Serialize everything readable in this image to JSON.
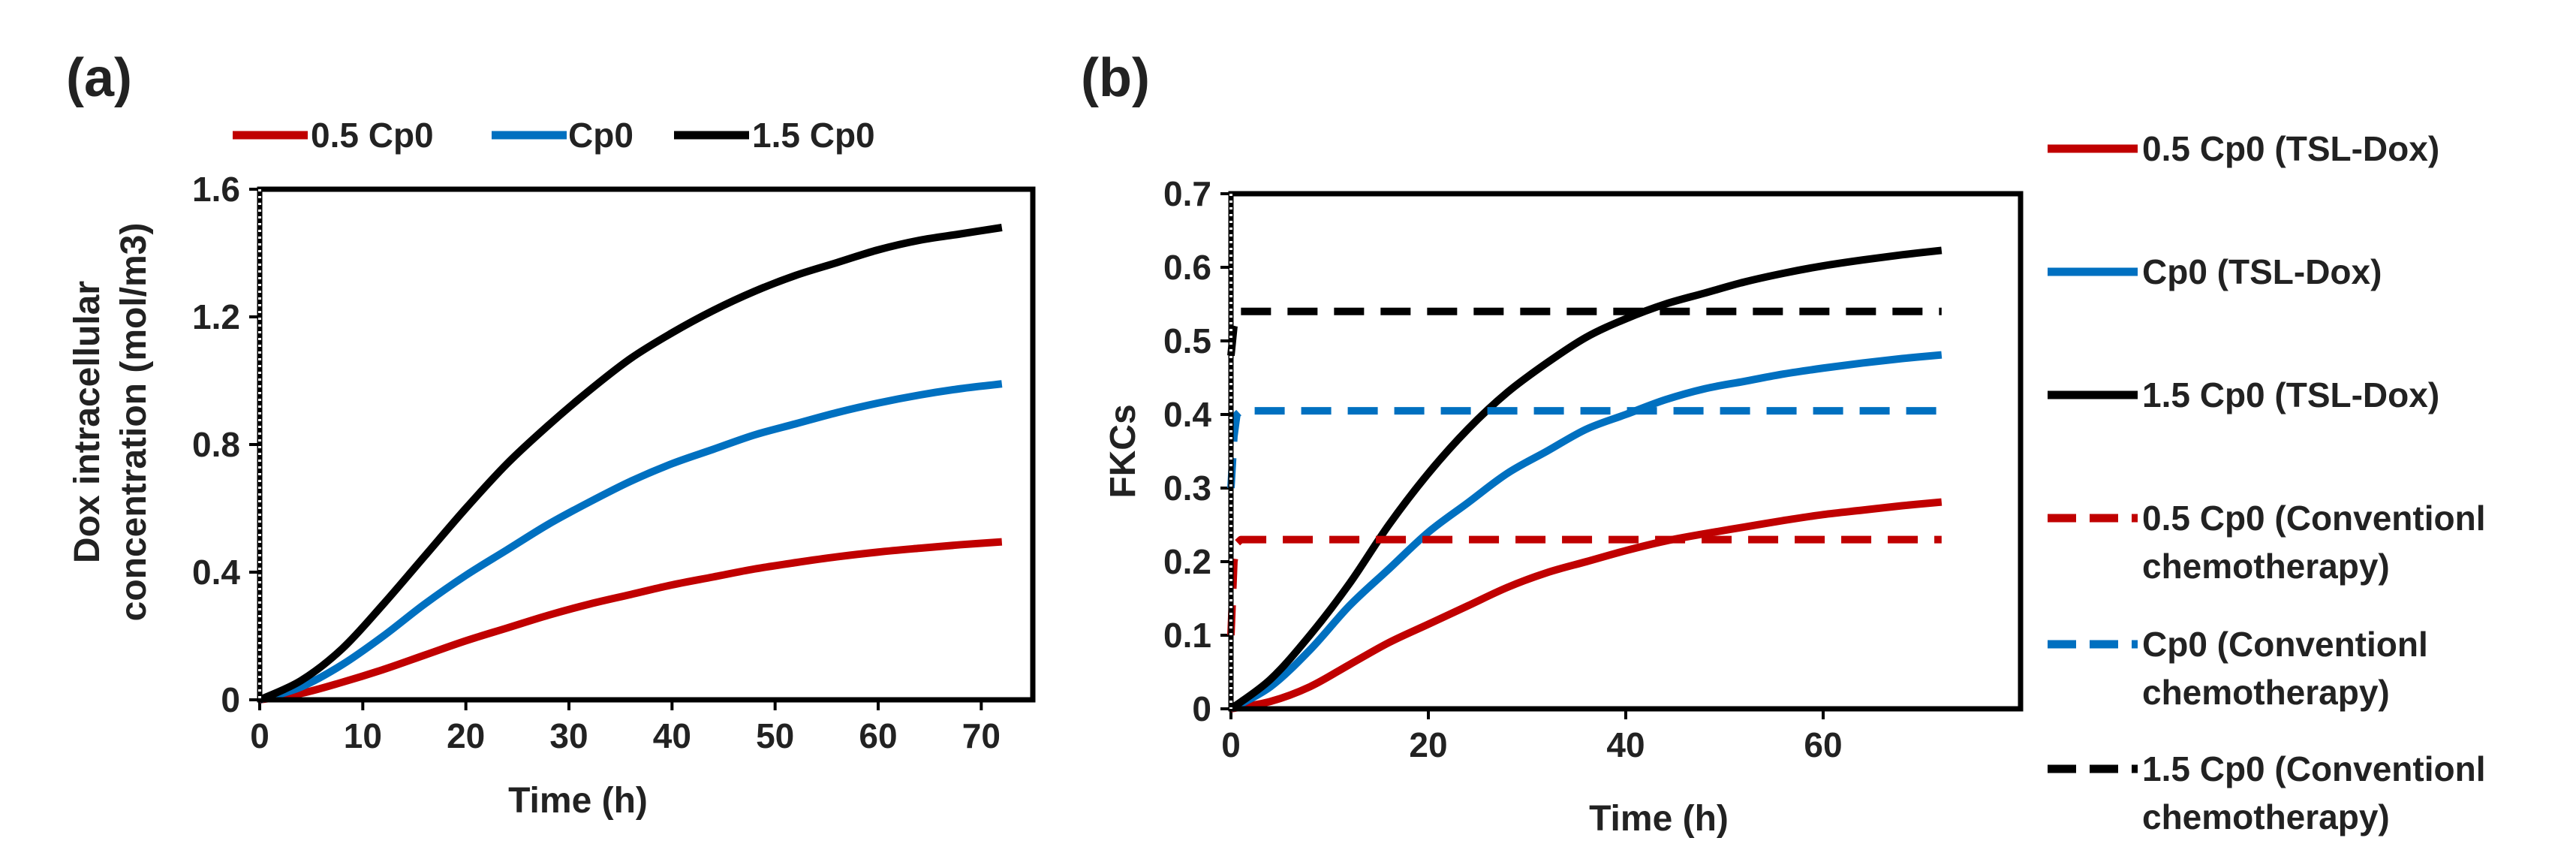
{
  "chart_data": [
    {
      "panel_label": "(a)",
      "type": "line",
      "xlabel": "Time (h)",
      "ylabel_lines": [
        "Dox intracellular",
        "concentration (mol/m3)"
      ],
      "xlim": [
        0,
        75
      ],
      "ylim": [
        0,
        1.6
      ],
      "x_ticks": [
        0,
        10,
        20,
        30,
        40,
        50,
        60,
        70
      ],
      "y_ticks": [
        0,
        0.4,
        0.8,
        1.2,
        1.6
      ],
      "y_tick_labels": [
        "0",
        "0.4",
        "0.8",
        "1.2",
        "1.6"
      ],
      "legend_position": "top",
      "series": [
        {
          "name": "0.5 Cp0",
          "color": "#c00000",
          "dash": false,
          "x": [
            0,
            4,
            8,
            12,
            16,
            20,
            24,
            28,
            32,
            36,
            40,
            44,
            48,
            52,
            56,
            60,
            64,
            68,
            72
          ],
          "y": [
            0,
            0.02,
            0.055,
            0.095,
            0.14,
            0.185,
            0.225,
            0.265,
            0.3,
            0.33,
            0.36,
            0.385,
            0.41,
            0.43,
            0.448,
            0.463,
            0.475,
            0.486,
            0.495
          ]
        },
        {
          "name": "Cp0",
          "color": "#0070c0",
          "dash": false,
          "x": [
            0,
            4,
            8,
            12,
            16,
            20,
            24,
            28,
            32,
            36,
            40,
            44,
            48,
            52,
            56,
            60,
            64,
            68,
            72
          ],
          "y": [
            0,
            0.04,
            0.11,
            0.2,
            0.3,
            0.39,
            0.47,
            0.55,
            0.62,
            0.685,
            0.74,
            0.785,
            0.83,
            0.865,
            0.9,
            0.93,
            0.955,
            0.975,
            0.99
          ]
        },
        {
          "name": "1.5 Cp0",
          "color": "#000000",
          "dash": false,
          "x": [
            0,
            4,
            8,
            12,
            16,
            20,
            24,
            28,
            32,
            36,
            40,
            44,
            48,
            52,
            56,
            60,
            64,
            68,
            72
          ],
          "y": [
            0,
            0.06,
            0.16,
            0.3,
            0.45,
            0.6,
            0.74,
            0.86,
            0.97,
            1.07,
            1.15,
            1.22,
            1.28,
            1.33,
            1.37,
            1.41,
            1.44,
            1.46,
            1.48
          ]
        }
      ]
    },
    {
      "panel_label": "(b)",
      "type": "line",
      "xlabel": "Time (h)",
      "ylabel": "FKCs",
      "xlim": [
        0,
        80
      ],
      "ylim": [
        0,
        0.7
      ],
      "x_ticks": [
        0,
        20,
        40,
        60
      ],
      "y_ticks": [
        0,
        0.1,
        0.2,
        0.3,
        0.4,
        0.5,
        0.6,
        0.7
      ],
      "y_tick_labels": [
        "0",
        "0.1",
        "0.2",
        "0.3",
        "0.4",
        "0.5",
        "0.6",
        "0.7"
      ],
      "legend_position": "right",
      "series": [
        {
          "name": "0.5 Cp0 (TSL-Dox)",
          "label_lines": [
            "0.5 Cp0 (TSL-Dox)"
          ],
          "color": "#c00000",
          "dash": false,
          "x": [
            0,
            4,
            8,
            12,
            16,
            20,
            24,
            28,
            32,
            36,
            40,
            44,
            48,
            52,
            56,
            60,
            64,
            68,
            72
          ],
          "y": [
            0,
            0.01,
            0.03,
            0.06,
            0.09,
            0.115,
            0.14,
            0.165,
            0.185,
            0.2,
            0.215,
            0.228,
            0.238,
            0.247,
            0.256,
            0.264,
            0.27,
            0.276,
            0.281
          ]
        },
        {
          "name": "Cp0 (TSL-Dox)",
          "label_lines": [
            "Cp0 (TSL-Dox)"
          ],
          "color": "#0070c0",
          "dash": false,
          "x": [
            0,
            4,
            8,
            12,
            16,
            20,
            24,
            28,
            32,
            36,
            40,
            44,
            48,
            52,
            56,
            60,
            64,
            68,
            72
          ],
          "y": [
            0,
            0.03,
            0.08,
            0.14,
            0.19,
            0.24,
            0.28,
            0.32,
            0.35,
            0.38,
            0.4,
            0.42,
            0.435,
            0.445,
            0.455,
            0.463,
            0.47,
            0.476,
            0.481
          ]
        },
        {
          "name": "1.5 Cp0 (TSL-Dox)",
          "label_lines": [
            "1.5 Cp0 (TSL-Dox)"
          ],
          "color": "#000000",
          "dash": false,
          "x": [
            0,
            4,
            8,
            12,
            16,
            20,
            24,
            28,
            32,
            36,
            40,
            44,
            48,
            52,
            56,
            60,
            64,
            68,
            72
          ],
          "y": [
            0,
            0.04,
            0.1,
            0.17,
            0.25,
            0.32,
            0.38,
            0.43,
            0.47,
            0.505,
            0.53,
            0.55,
            0.565,
            0.58,
            0.592,
            0.602,
            0.61,
            0.617,
            0.623
          ]
        },
        {
          "name": "0.5 Cp0 (Conventionl chemotherapy)",
          "label_lines": [
            "0.5 Cp0 (Conventionl",
            "chemotherapy)"
          ],
          "color": "#c00000",
          "dash": true,
          "x": [
            0,
            0.3,
            0.6,
            1,
            2,
            10,
            20,
            40,
            60,
            72
          ],
          "y": [
            0.1,
            0.2,
            0.225,
            0.23,
            0.23,
            0.23,
            0.23,
            0.23,
            0.23,
            0.23
          ]
        },
        {
          "name": "Cp0 (Conventionl chemotherapy)",
          "label_lines": [
            "Cp0 (Conventionl",
            "chemotherapy)"
          ],
          "color": "#0070c0",
          "dash": true,
          "x": [
            0,
            0.3,
            0.6,
            1,
            2,
            10,
            20,
            40,
            60,
            72
          ],
          "y": [
            0.3,
            0.37,
            0.4,
            0.405,
            0.405,
            0.405,
            0.405,
            0.405,
            0.405,
            0.405
          ]
        },
        {
          "name": "1.5 Cp0 (Conventionl chemotherapy)",
          "label_lines": [
            "1.5 Cp0 (Conventionl",
            "chemotherapy)"
          ],
          "color": "#000000",
          "dash": true,
          "x": [
            0,
            0.3,
            0.6,
            1,
            2,
            10,
            20,
            40,
            60,
            72
          ],
          "y": [
            0.48,
            0.52,
            0.535,
            0.54,
            0.54,
            0.54,
            0.54,
            0.54,
            0.54,
            0.54
          ]
        }
      ]
    }
  ]
}
